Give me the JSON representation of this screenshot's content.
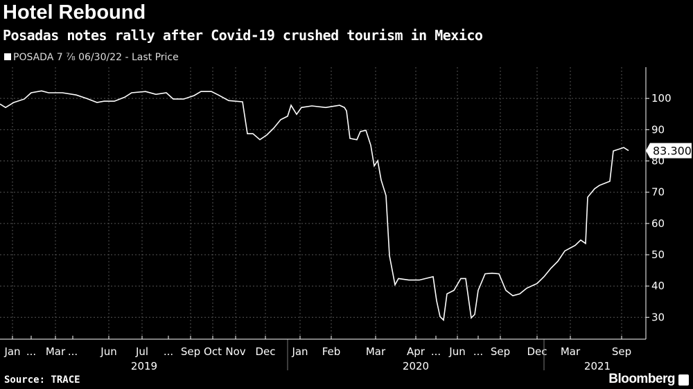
{
  "title": "Hotel Rebound",
  "subtitle": "Posadas notes rally after Covid-19 crushed tourism in Mexico",
  "legend": "POSADA 7 ⅞ 06/30/22 - Last Price",
  "source": "Source: TRACE",
  "brand": "Bloomberg",
  "chart_data": {
    "type": "line",
    "title": "Hotel Rebound",
    "xlabel": "",
    "ylabel": "",
    "ylim": [
      23,
      110
    ],
    "xlim": [
      0,
      932
    ],
    "yticks": [
      30,
      40,
      50,
      60,
      70,
      80,
      90,
      100
    ],
    "grid": true,
    "last_value_label": "83.300",
    "x_tick_labels": [
      {
        "x": 18,
        "label": "Jan"
      },
      {
        "x": 45,
        "label": "..."
      },
      {
        "x": 80,
        "label": "Mar"
      },
      {
        "x": 105,
        "label": "..."
      },
      {
        "x": 157,
        "label": "Jun"
      },
      {
        "x": 205,
        "label": "Jul"
      },
      {
        "x": 243,
        "label": "..."
      },
      {
        "x": 275,
        "label": "Sep"
      },
      {
        "x": 307,
        "label": "Oct"
      },
      {
        "x": 340,
        "label": "Nov"
      },
      {
        "x": 383,
        "label": "Dec"
      },
      {
        "x": 433,
        "label": "Jan"
      },
      {
        "x": 478,
        "label": "Feb"
      },
      {
        "x": 542,
        "label": "Mar"
      },
      {
        "x": 600,
        "label": "Apr"
      },
      {
        "x": 629,
        "label": "..."
      },
      {
        "x": 660,
        "label": "Jun"
      },
      {
        "x": 690,
        "label": "..."
      },
      {
        "x": 722,
        "label": "Sep"
      },
      {
        "x": 775,
        "label": "Dec"
      },
      {
        "x": 823,
        "label": "Mar"
      },
      {
        "x": 897,
        "label": "Sep"
      }
    ],
    "year_labels": [
      {
        "x": 208,
        "label": "2019"
      },
      {
        "x": 600,
        "label": "2020"
      },
      {
        "x": 862,
        "label": "2021"
      }
    ],
    "year_separators": [
      415,
      785
    ],
    "series": [
      {
        "name": "POSADA 7 ⅞ 06/30/22 - Last Price",
        "color": "#ffffff",
        "points": [
          [
            0,
            98.2
          ],
          [
            8,
            97.1
          ],
          [
            20,
            98.7
          ],
          [
            35,
            99.8
          ],
          [
            45,
            101.8
          ],
          [
            60,
            102.4
          ],
          [
            70,
            101.8
          ],
          [
            90,
            101.8
          ],
          [
            110,
            101.1
          ],
          [
            125,
            100
          ],
          [
            140,
            98.7
          ],
          [
            150,
            99.1
          ],
          [
            165,
            99.1
          ],
          [
            180,
            100.4
          ],
          [
            190,
            101.8
          ],
          [
            210,
            102.2
          ],
          [
            225,
            101.3
          ],
          [
            240,
            101.8
          ],
          [
            250,
            99.8
          ],
          [
            265,
            99.8
          ],
          [
            280,
            100.9
          ],
          [
            290,
            102.2
          ],
          [
            305,
            102.2
          ],
          [
            315,
            101.1
          ],
          [
            330,
            99.3
          ],
          [
            350,
            98.9
          ],
          [
            357,
            88.7
          ],
          [
            365,
            88.7
          ],
          [
            375,
            86.8
          ],
          [
            385,
            88.3
          ],
          [
            395,
            90.5
          ],
          [
            405,
            93.2
          ],
          [
            415,
            94.3
          ],
          [
            420,
            97.8
          ],
          [
            428,
            94.9
          ],
          [
            435,
            97.1
          ],
          [
            450,
            97.6
          ],
          [
            470,
            97.1
          ],
          [
            490,
            97.8
          ],
          [
            497,
            97.1
          ],
          [
            500,
            96
          ],
          [
            505,
            87.2
          ],
          [
            515,
            86.8
          ],
          [
            520,
            89.4
          ],
          [
            528,
            89.8
          ],
          [
            535,
            85
          ],
          [
            540,
            78.4
          ],
          [
            545,
            80.1
          ],
          [
            550,
            73.9
          ],
          [
            557,
            68.9
          ],
          [
            562,
            49.7
          ],
          [
            570,
            40.4
          ],
          [
            575,
            42.4
          ],
          [
            590,
            41.9
          ],
          [
            605,
            41.9
          ],
          [
            625,
            43
          ],
          [
            630,
            35.3
          ],
          [
            635,
            30.2
          ],
          [
            640,
            29.1
          ],
          [
            645,
            37.5
          ],
          [
            655,
            38.6
          ],
          [
            665,
            42.4
          ],
          [
            672,
            42.4
          ],
          [
            680,
            29.8
          ],
          [
            685,
            30.9
          ],
          [
            690,
            38.6
          ],
          [
            700,
            43.9
          ],
          [
            710,
            44.1
          ],
          [
            720,
            43.9
          ],
          [
            730,
            38.6
          ],
          [
            740,
            36.9
          ],
          [
            750,
            37.5
          ],
          [
            760,
            39.3
          ],
          [
            775,
            40.8
          ],
          [
            785,
            43
          ],
          [
            795,
            45.7
          ],
          [
            805,
            47.9
          ],
          [
            815,
            51.2
          ],
          [
            830,
            53
          ],
          [
            838,
            54.7
          ],
          [
            845,
            53.6
          ],
          [
            848,
            68.4
          ],
          [
            858,
            71.1
          ],
          [
            865,
            72.2
          ],
          [
            880,
            73.5
          ],
          [
            885,
            83.2
          ],
          [
            895,
            83.9
          ],
          [
            900,
            84.3
          ],
          [
            907,
            83.3
          ]
        ]
      }
    ]
  }
}
